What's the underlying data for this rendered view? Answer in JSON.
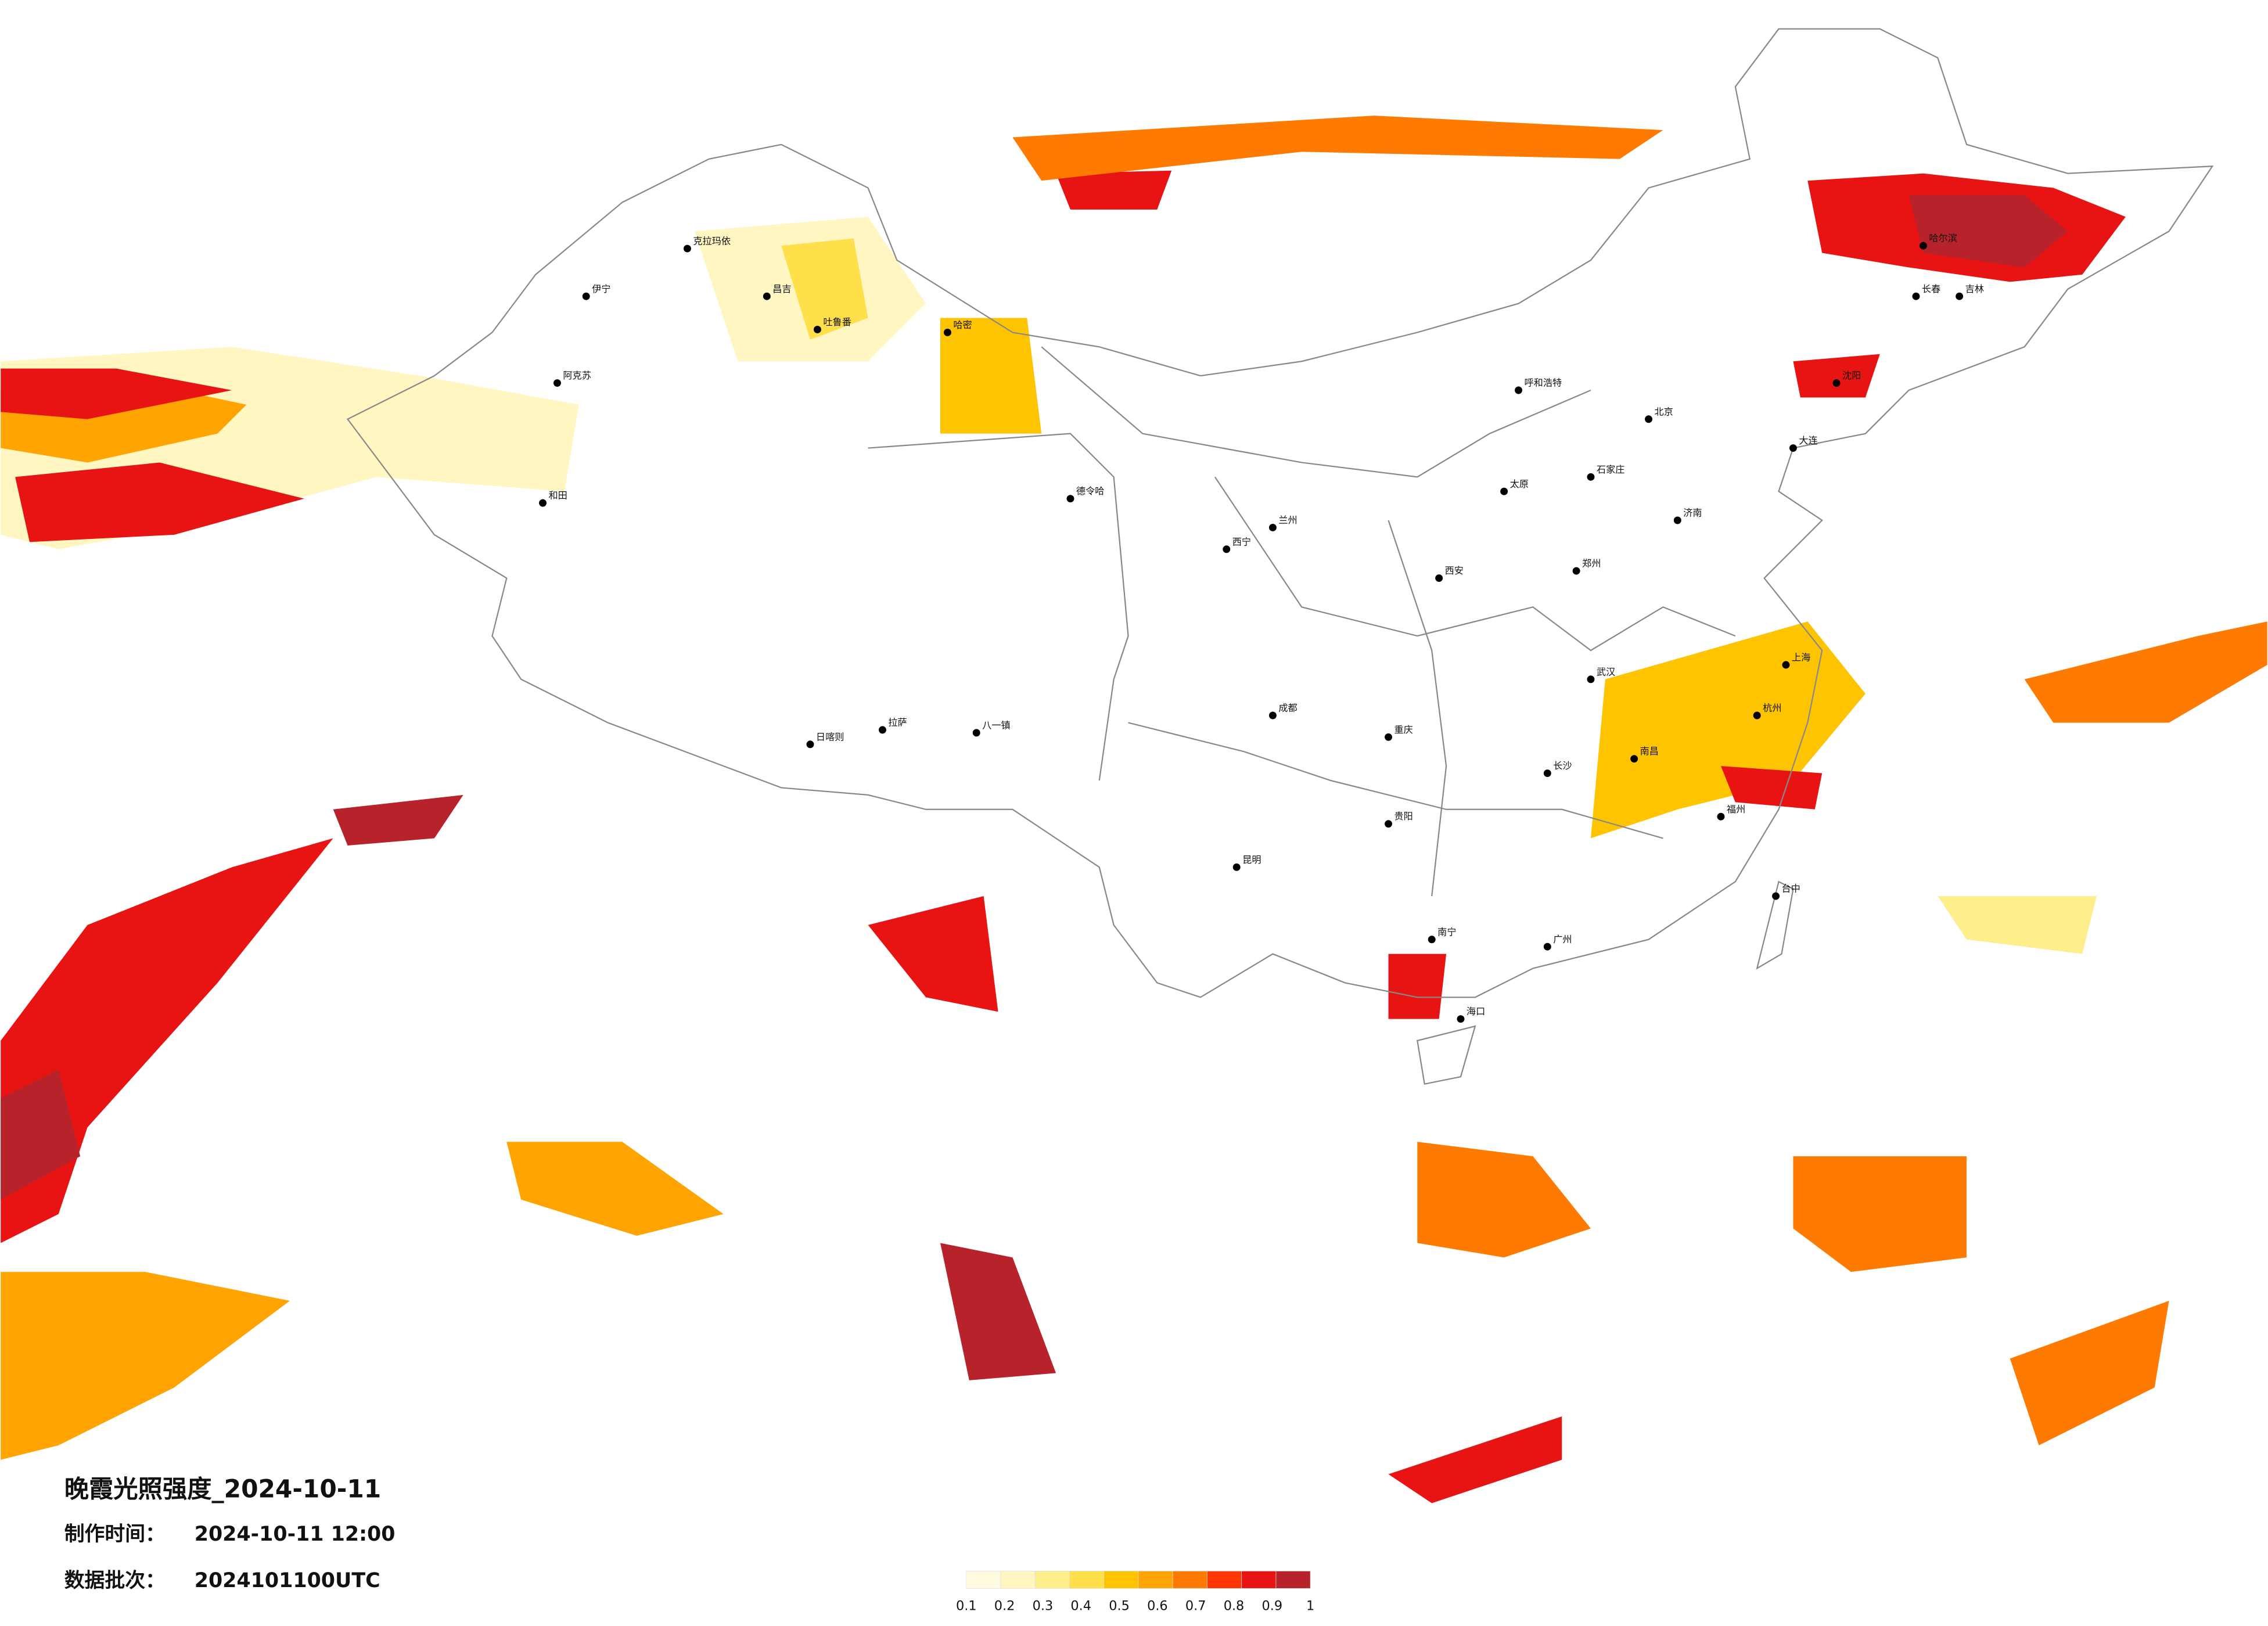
{
  "title": "晚霞光照强度_2024-10-11",
  "info": [
    {
      "label": "制作时间：",
      "value": "2024-10-11 12:00"
    },
    {
      "label": "数据批次：",
      "value": "2024101100UTC"
    }
  ],
  "colorbar": {
    "ticks": [
      0.1,
      0.2,
      0.3,
      0.4,
      0.5,
      0.6,
      0.7,
      0.8,
      0.9,
      1
    ],
    "colors": [
      "#fffbe0",
      "#fff6c2",
      "#ffee8c",
      "#ffdf4a",
      "#ffc400",
      "#ffa400",
      "#ff7a00",
      "#ff3600",
      "#e81414",
      "#b8222a"
    ]
  },
  "cities": [
    "伊宁",
    "阿克苏",
    "和田",
    "克拉玛依",
    "昌吉",
    "吐鲁番",
    "哈密",
    "德令哈",
    "拉萨",
    "日喀则",
    "八一镇",
    "呼和浩特",
    "哈尔滨",
    "长春",
    "吉林",
    "沈阳",
    "大连",
    "北京",
    "石家庄",
    "太原",
    "郑州",
    "西安",
    "兰州",
    "西宁",
    "成都",
    "重庆",
    "贵阳",
    "昆明",
    "南宁",
    "广州",
    "福州",
    "台中",
    "南昌",
    "武汉",
    "长沙",
    "杭州",
    "上海",
    "济南",
    "海口"
  ]
}
